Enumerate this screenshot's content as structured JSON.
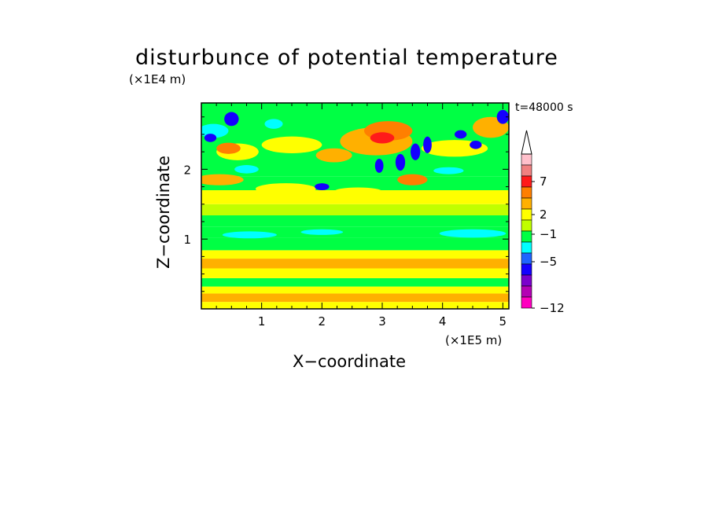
{
  "chart_data": {
    "type": "heatmap",
    "title": "disturbunce of potential temperature",
    "timestamp": "t=48000 s",
    "xlabel": "X−coordinate",
    "ylabel": "Z−coordinate",
    "x_unit": "(×1E5 m)",
    "y_unit": "(×1E4 m)",
    "xlim": [
      0,
      5.1
    ],
    "ylim": [
      0,
      2.95
    ],
    "x_ticks": [
      {
        "value": 1,
        "label": "1"
      },
      {
        "value": 2,
        "label": "2"
      },
      {
        "value": 3,
        "label": "3"
      },
      {
        "value": 4,
        "label": "4"
      },
      {
        "value": 5,
        "label": "5"
      }
    ],
    "y_ticks": [
      {
        "value": 1,
        "label": "1"
      },
      {
        "value": 2,
        "label": "2"
      }
    ],
    "colorbar": {
      "labels": [
        {
          "level": 7,
          "label": "7"
        },
        {
          "level": 2,
          "label": "2"
        },
        {
          "level": -1,
          "label": "−1"
        },
        {
          "level": -5,
          "label": "−5"
        },
        {
          "level": -12,
          "label": "−12"
        }
      ],
      "colors": [
        "#ffc0cb",
        "#f08080",
        "#ff1a1a",
        "#ff7f00",
        "#ffb000",
        "#ffff00",
        "#c0ff00",
        "#00ff44",
        "#00ffff",
        "#1e64ff",
        "#1400ff",
        "#7a00cc",
        "#b400b4",
        "#ff00c0"
      ],
      "extend_top": true
    },
    "bands": [
      {
        "z0": 0.0,
        "z1": 0.1,
        "color": "#ffff00"
      },
      {
        "z0": 0.1,
        "z1": 0.22,
        "color": "#ffb000"
      },
      {
        "z0": 0.22,
        "z1": 0.32,
        "color": "#ffff00"
      },
      {
        "z0": 0.32,
        "z1": 0.44,
        "color": "#00ff44"
      },
      {
        "z0": 0.44,
        "z1": 0.58,
        "color": "#ffff00"
      },
      {
        "z0": 0.58,
        "z1": 0.72,
        "color": "#ffb000"
      },
      {
        "z0": 0.72,
        "z1": 0.84,
        "color": "#ffff00"
      },
      {
        "z0": 0.84,
        "z1": 1.02,
        "color": "#00ff44"
      },
      {
        "z0": 1.02,
        "z1": 1.18,
        "color": "#00ff44"
      },
      {
        "z0": 1.18,
        "z1": 1.34,
        "color": "#00ff44"
      },
      {
        "z0": 1.34,
        "z1": 1.5,
        "color": "#c0ff00"
      },
      {
        "z0": 1.5,
        "z1": 1.7,
        "color": "#ffff00"
      },
      {
        "z0": 1.7,
        "z1": 1.9,
        "color": "#00ff44"
      },
      {
        "z0": 1.9,
        "z1": 2.95,
        "color": "#00ff44"
      }
    ],
    "blobs": [
      {
        "x": 0.8,
        "z": 1.06,
        "rx": 0.45,
        "rz": 0.05,
        "color": "#00ffff"
      },
      {
        "x": 2.0,
        "z": 1.1,
        "rx": 0.35,
        "rz": 0.04,
        "color": "#00ffff"
      },
      {
        "x": 4.5,
        "z": 1.08,
        "rx": 0.55,
        "rz": 0.06,
        "color": "#00ffff"
      },
      {
        "x": 1.4,
        "z": 1.72,
        "rx": 0.5,
        "rz": 0.08,
        "color": "#ffff00"
      },
      {
        "x": 2.6,
        "z": 1.68,
        "rx": 0.4,
        "rz": 0.06,
        "color": "#ffff00"
      },
      {
        "x": 3.8,
        "z": 1.6,
        "rx": 0.4,
        "rz": 0.06,
        "color": "#ffff00"
      },
      {
        "x": 0.3,
        "z": 1.85,
        "rx": 0.4,
        "rz": 0.08,
        "color": "#ffb000"
      },
      {
        "x": 1.5,
        "z": 2.35,
        "rx": 0.5,
        "rz": 0.12,
        "color": "#ffff00"
      },
      {
        "x": 0.6,
        "z": 2.25,
        "rx": 0.35,
        "rz": 0.12,
        "color": "#ffff00"
      },
      {
        "x": 2.2,
        "z": 2.2,
        "rx": 0.3,
        "rz": 0.1,
        "color": "#ffb000"
      },
      {
        "x": 2.9,
        "z": 2.4,
        "rx": 0.6,
        "rz": 0.2,
        "color": "#ffb000"
      },
      {
        "x": 3.1,
        "z": 2.55,
        "rx": 0.4,
        "rz": 0.14,
        "color": "#ff7f00"
      },
      {
        "x": 3.0,
        "z": 2.45,
        "rx": 0.2,
        "rz": 0.08,
        "color": "#ff1a1a"
      },
      {
        "x": 3.5,
        "z": 1.85,
        "rx": 0.25,
        "rz": 0.08,
        "color": "#ff7f00"
      },
      {
        "x": 4.2,
        "z": 2.3,
        "rx": 0.55,
        "rz": 0.12,
        "color": "#ffff00"
      },
      {
        "x": 4.8,
        "z": 2.6,
        "rx": 0.3,
        "rz": 0.15,
        "color": "#ffb000"
      },
      {
        "x": 0.45,
        "z": 2.3,
        "rx": 0.2,
        "rz": 0.08,
        "color": "#ff7f00"
      },
      {
        "x": 0.2,
        "z": 2.55,
        "rx": 0.25,
        "rz": 0.1,
        "color": "#00ffff"
      },
      {
        "x": 0.5,
        "z": 2.72,
        "rx": 0.12,
        "rz": 0.1,
        "color": "#1400ff"
      },
      {
        "x": 0.15,
        "z": 2.45,
        "rx": 0.1,
        "rz": 0.06,
        "color": "#1400ff"
      },
      {
        "x": 1.2,
        "z": 2.65,
        "rx": 0.15,
        "rz": 0.07,
        "color": "#00ffff"
      },
      {
        "x": 3.3,
        "z": 2.1,
        "rx": 0.08,
        "rz": 0.12,
        "color": "#1400ff"
      },
      {
        "x": 3.55,
        "z": 2.25,
        "rx": 0.08,
        "rz": 0.12,
        "color": "#1400ff"
      },
      {
        "x": 2.95,
        "z": 2.05,
        "rx": 0.07,
        "rz": 0.1,
        "color": "#1400ff"
      },
      {
        "x": 3.75,
        "z": 2.35,
        "rx": 0.07,
        "rz": 0.12,
        "color": "#1400ff"
      },
      {
        "x": 4.3,
        "z": 2.5,
        "rx": 0.1,
        "rz": 0.06,
        "color": "#1400ff"
      },
      {
        "x": 4.55,
        "z": 2.35,
        "rx": 0.1,
        "rz": 0.06,
        "color": "#1400ff"
      },
      {
        "x": 5.0,
        "z": 2.75,
        "rx": 0.1,
        "rz": 0.1,
        "color": "#1400ff"
      },
      {
        "x": 2.0,
        "z": 1.75,
        "rx": 0.12,
        "rz": 0.05,
        "color": "#1400ff"
      },
      {
        "x": 0.75,
        "z": 2.0,
        "rx": 0.2,
        "rz": 0.06,
        "color": "#00ffff"
      },
      {
        "x": 4.1,
        "z": 1.98,
        "rx": 0.25,
        "rz": 0.05,
        "color": "#00ffff"
      }
    ]
  }
}
